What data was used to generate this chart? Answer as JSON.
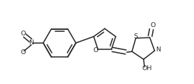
{
  "bg_color": "#ffffff",
  "line_color": "#2a2a2a",
  "lw": 1.15,
  "figsize": [
    2.78,
    1.21
  ],
  "dpi": 100,
  "xlim": [
    -0.3,
    9.8
  ],
  "ylim": [
    0.2,
    4.3
  ]
}
